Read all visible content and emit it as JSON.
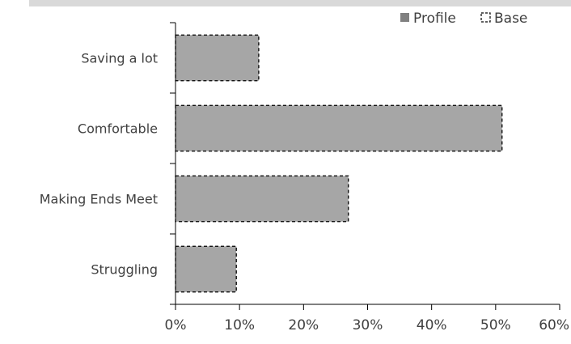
{
  "chart_data": {
    "type": "bar",
    "orientation": "horizontal",
    "categories": [
      "Struggling",
      "Making Ends Meet",
      "Comfortable",
      "Saving a lot"
    ],
    "series": [
      {
        "name": "Profile",
        "values": [
          9.5,
          27,
          51,
          13
        ]
      },
      {
        "name": "Base",
        "values": [
          9.5,
          27,
          51,
          13
        ]
      }
    ],
    "x_ticks": [
      "0%",
      "10%",
      "20%",
      "30%",
      "40%",
      "50%",
      "60%"
    ],
    "xlim": [
      0,
      60
    ],
    "x_unit": "%",
    "legend_position": "top-right",
    "grid": false,
    "colors": {
      "profile_fill": "#a6a6a6",
      "base_outline": "#000000",
      "axis": "#000000"
    }
  }
}
